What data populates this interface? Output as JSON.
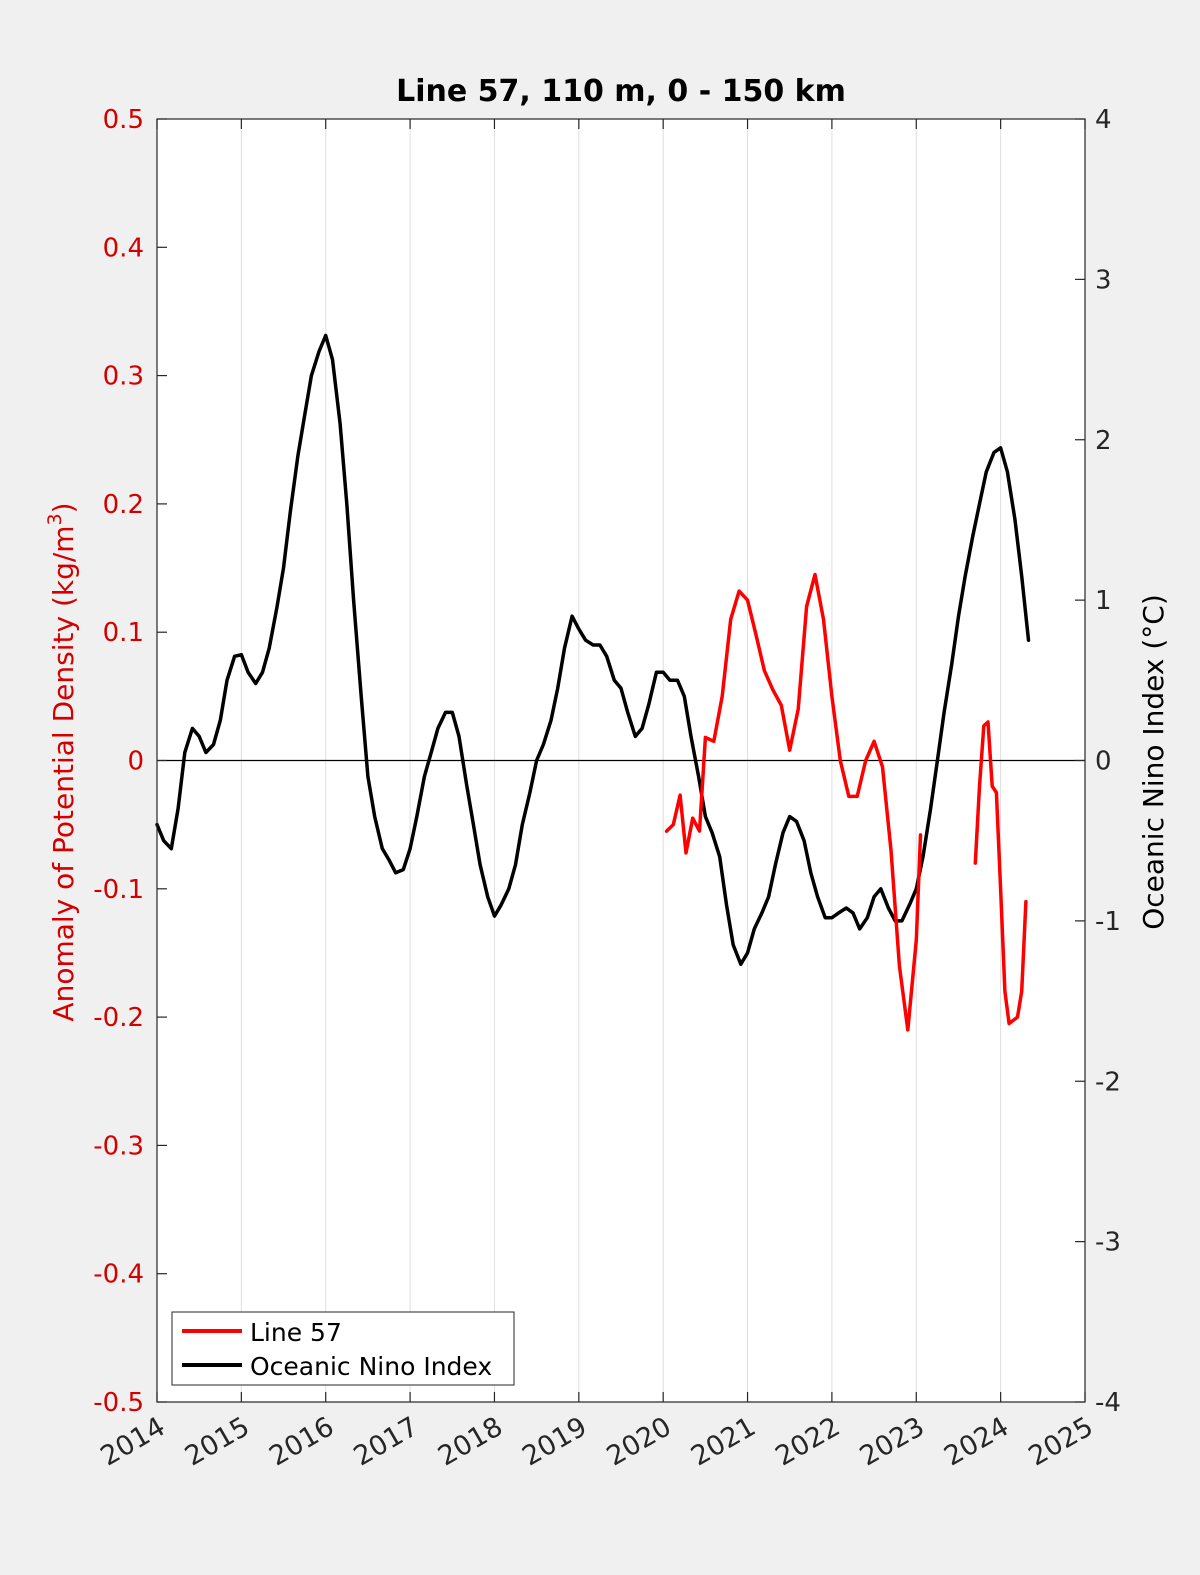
{
  "chart_data": {
    "type": "line",
    "title": "Line 57, 110 m, 0 - 150 km",
    "y_label_left": "Anomaly of Potential Density (kg/m",
    "y_label_left_superscript": "3",
    "y_label_left_close": ")",
    "y_label_right": "Oceanic Nino Index (°C)",
    "xlim": [
      2014,
      2025
    ],
    "ylim_left": [
      -0.5,
      0.5
    ],
    "ylim_right": [
      -4,
      4
    ],
    "x_ticks": [
      "2014",
      "2015",
      "2016",
      "2017",
      "2018",
      "2019",
      "2020",
      "2021",
      "2022",
      "2023",
      "2024",
      "2025"
    ],
    "y_ticks_left": [
      "0.5",
      "0.4",
      "0.3",
      "0.2",
      "0.1",
      "0",
      "-0.1",
      "-0.2",
      "-0.3",
      "-0.4",
      "-0.5"
    ],
    "y_ticks_right": [
      "4",
      "3",
      "2",
      "1",
      "0",
      "-1",
      "-2",
      "-3",
      "-4"
    ],
    "grid": "vertical",
    "legend_position": "bottom-left",
    "colors": {
      "line57": "#ff0000",
      "oni": "#000000",
      "left_axis": "#d40000"
    },
    "series": [
      {
        "name": "Line 57",
        "axis": "left",
        "segments": [
          [
            [
              2020.04,
              -0.055
            ],
            [
              2020.12,
              -0.05
            ],
            [
              2020.2,
              -0.027
            ],
            [
              2020.27,
              -0.072
            ],
            [
              2020.35,
              -0.045
            ],
            [
              2020.43,
              -0.055
            ],
            [
              2020.5,
              0.018
            ],
            [
              2020.6,
              0.015
            ],
            [
              2020.7,
              0.05
            ],
            [
              2020.8,
              0.11
            ],
            [
              2020.9,
              0.132
            ],
            [
              2021.0,
              0.125
            ],
            [
              2021.1,
              0.098
            ],
            [
              2021.2,
              0.07
            ],
            [
              2021.3,
              0.055
            ],
            [
              2021.4,
              0.043
            ],
            [
              2021.5,
              0.008
            ],
            [
              2021.6,
              0.04
            ],
            [
              2021.7,
              0.12
            ],
            [
              2021.8,
              0.145
            ],
            [
              2021.9,
              0.11
            ],
            [
              2022.0,
              0.05
            ],
            [
              2022.1,
              0.0
            ],
            [
              2022.2,
              -0.028
            ],
            [
              2022.3,
              -0.028
            ],
            [
              2022.4,
              0.0
            ],
            [
              2022.5,
              0.015
            ],
            [
              2022.6,
              -0.005
            ],
            [
              2022.7,
              -0.07
            ],
            [
              2022.8,
              -0.16
            ],
            [
              2022.9,
              -0.21
            ],
            [
              2023.0,
              -0.14
            ],
            [
              2023.05,
              -0.058
            ]
          ],
          [
            [
              2023.7,
              -0.08
            ],
            [
              2023.75,
              -0.02
            ],
            [
              2023.8,
              0.027
            ],
            [
              2023.85,
              0.03
            ],
            [
              2023.9,
              -0.02
            ],
            [
              2023.95,
              -0.025
            ],
            [
              2024.0,
              -0.1
            ],
            [
              2024.05,
              -0.18
            ],
            [
              2024.1,
              -0.205
            ],
            [
              2024.2,
              -0.2
            ],
            [
              2024.25,
              -0.18
            ],
            [
              2024.3,
              -0.11
            ]
          ]
        ]
      },
      {
        "name": "Oceanic Nino Index",
        "axis": "right",
        "points": [
          [
            2014.0,
            -0.4
          ],
          [
            2014.08,
            -0.5
          ],
          [
            2014.17,
            -0.55
          ],
          [
            2014.25,
            -0.3
          ],
          [
            2014.33,
            0.05
          ],
          [
            2014.42,
            0.2
          ],
          [
            2014.5,
            0.15
          ],
          [
            2014.58,
            0.05
          ],
          [
            2014.67,
            0.1
          ],
          [
            2014.75,
            0.25
          ],
          [
            2014.83,
            0.5
          ],
          [
            2014.92,
            0.65
          ],
          [
            2015.0,
            0.66
          ],
          [
            2015.08,
            0.55
          ],
          [
            2015.17,
            0.48
          ],
          [
            2015.25,
            0.55
          ],
          [
            2015.33,
            0.7
          ],
          [
            2015.42,
            0.95
          ],
          [
            2015.5,
            1.2
          ],
          [
            2015.58,
            1.55
          ],
          [
            2015.67,
            1.9
          ],
          [
            2015.75,
            2.15
          ],
          [
            2015.83,
            2.4
          ],
          [
            2015.92,
            2.55
          ],
          [
            2016.0,
            2.65
          ],
          [
            2016.08,
            2.5
          ],
          [
            2016.17,
            2.1
          ],
          [
            2016.25,
            1.6
          ],
          [
            2016.33,
            1.0
          ],
          [
            2016.42,
            0.4
          ],
          [
            2016.5,
            -0.1
          ],
          [
            2016.58,
            -0.35
          ],
          [
            2016.67,
            -0.55
          ],
          [
            2016.75,
            -0.62
          ],
          [
            2016.83,
            -0.7
          ],
          [
            2016.92,
            -0.68
          ],
          [
            2017.0,
            -0.55
          ],
          [
            2017.08,
            -0.35
          ],
          [
            2017.17,
            -0.1
          ],
          [
            2017.25,
            0.05
          ],
          [
            2017.33,
            0.2
          ],
          [
            2017.42,
            0.3
          ],
          [
            2017.5,
            0.3
          ],
          [
            2017.58,
            0.15
          ],
          [
            2017.67,
            -0.15
          ],
          [
            2017.75,
            -0.4
          ],
          [
            2017.83,
            -0.65
          ],
          [
            2017.92,
            -0.85
          ],
          [
            2018.0,
            -0.97
          ],
          [
            2018.08,
            -0.9
          ],
          [
            2018.17,
            -0.8
          ],
          [
            2018.25,
            -0.65
          ],
          [
            2018.33,
            -0.4
          ],
          [
            2018.42,
            -0.2
          ],
          [
            2018.5,
            0.0
          ],
          [
            2018.58,
            0.1
          ],
          [
            2018.67,
            0.25
          ],
          [
            2018.75,
            0.45
          ],
          [
            2018.83,
            0.7
          ],
          [
            2018.92,
            0.9
          ],
          [
            2019.0,
            0.82
          ],
          [
            2019.08,
            0.75
          ],
          [
            2019.17,
            0.72
          ],
          [
            2019.25,
            0.72
          ],
          [
            2019.33,
            0.65
          ],
          [
            2019.42,
            0.5
          ],
          [
            2019.5,
            0.45
          ],
          [
            2019.58,
            0.3
          ],
          [
            2019.67,
            0.15
          ],
          [
            2019.75,
            0.2
          ],
          [
            2019.83,
            0.35
          ],
          [
            2019.92,
            0.55
          ],
          [
            2020.0,
            0.55
          ],
          [
            2020.08,
            0.5
          ],
          [
            2020.17,
            0.5
          ],
          [
            2020.25,
            0.4
          ],
          [
            2020.33,
            0.15
          ],
          [
            2020.42,
            -0.1
          ],
          [
            2020.5,
            -0.35
          ],
          [
            2020.58,
            -0.45
          ],
          [
            2020.67,
            -0.6
          ],
          [
            2020.75,
            -0.9
          ],
          [
            2020.83,
            -1.15
          ],
          [
            2020.92,
            -1.27
          ],
          [
            2021.0,
            -1.2
          ],
          [
            2021.08,
            -1.05
          ],
          [
            2021.17,
            -0.95
          ],
          [
            2021.25,
            -0.85
          ],
          [
            2021.33,
            -0.65
          ],
          [
            2021.42,
            -0.45
          ],
          [
            2021.5,
            -0.35
          ],
          [
            2021.58,
            -0.38
          ],
          [
            2021.67,
            -0.5
          ],
          [
            2021.75,
            -0.7
          ],
          [
            2021.83,
            -0.85
          ],
          [
            2021.92,
            -0.98
          ],
          [
            2022.0,
            -0.98
          ],
          [
            2022.08,
            -0.95
          ],
          [
            2022.17,
            -0.92
          ],
          [
            2022.25,
            -0.95
          ],
          [
            2022.33,
            -1.05
          ],
          [
            2022.42,
            -0.98
          ],
          [
            2022.5,
            -0.85
          ],
          [
            2022.58,
            -0.8
          ],
          [
            2022.67,
            -0.92
          ],
          [
            2022.75,
            -1.0
          ],
          [
            2022.83,
            -1.0
          ],
          [
            2022.92,
            -0.9
          ],
          [
            2023.0,
            -0.8
          ],
          [
            2023.08,
            -0.6
          ],
          [
            2023.17,
            -0.3
          ],
          [
            2023.25,
            0.0
          ],
          [
            2023.33,
            0.3
          ],
          [
            2023.42,
            0.6
          ],
          [
            2023.5,
            0.9
          ],
          [
            2023.58,
            1.15
          ],
          [
            2023.67,
            1.4
          ],
          [
            2023.75,
            1.6
          ],
          [
            2023.83,
            1.8
          ],
          [
            2023.92,
            1.92
          ],
          [
            2024.0,
            1.95
          ],
          [
            2024.08,
            1.8
          ],
          [
            2024.17,
            1.5
          ],
          [
            2024.25,
            1.15
          ],
          [
            2024.33,
            0.75
          ]
        ]
      }
    ],
    "legend": [
      "Line 57",
      "Oceanic Nino Index"
    ]
  }
}
